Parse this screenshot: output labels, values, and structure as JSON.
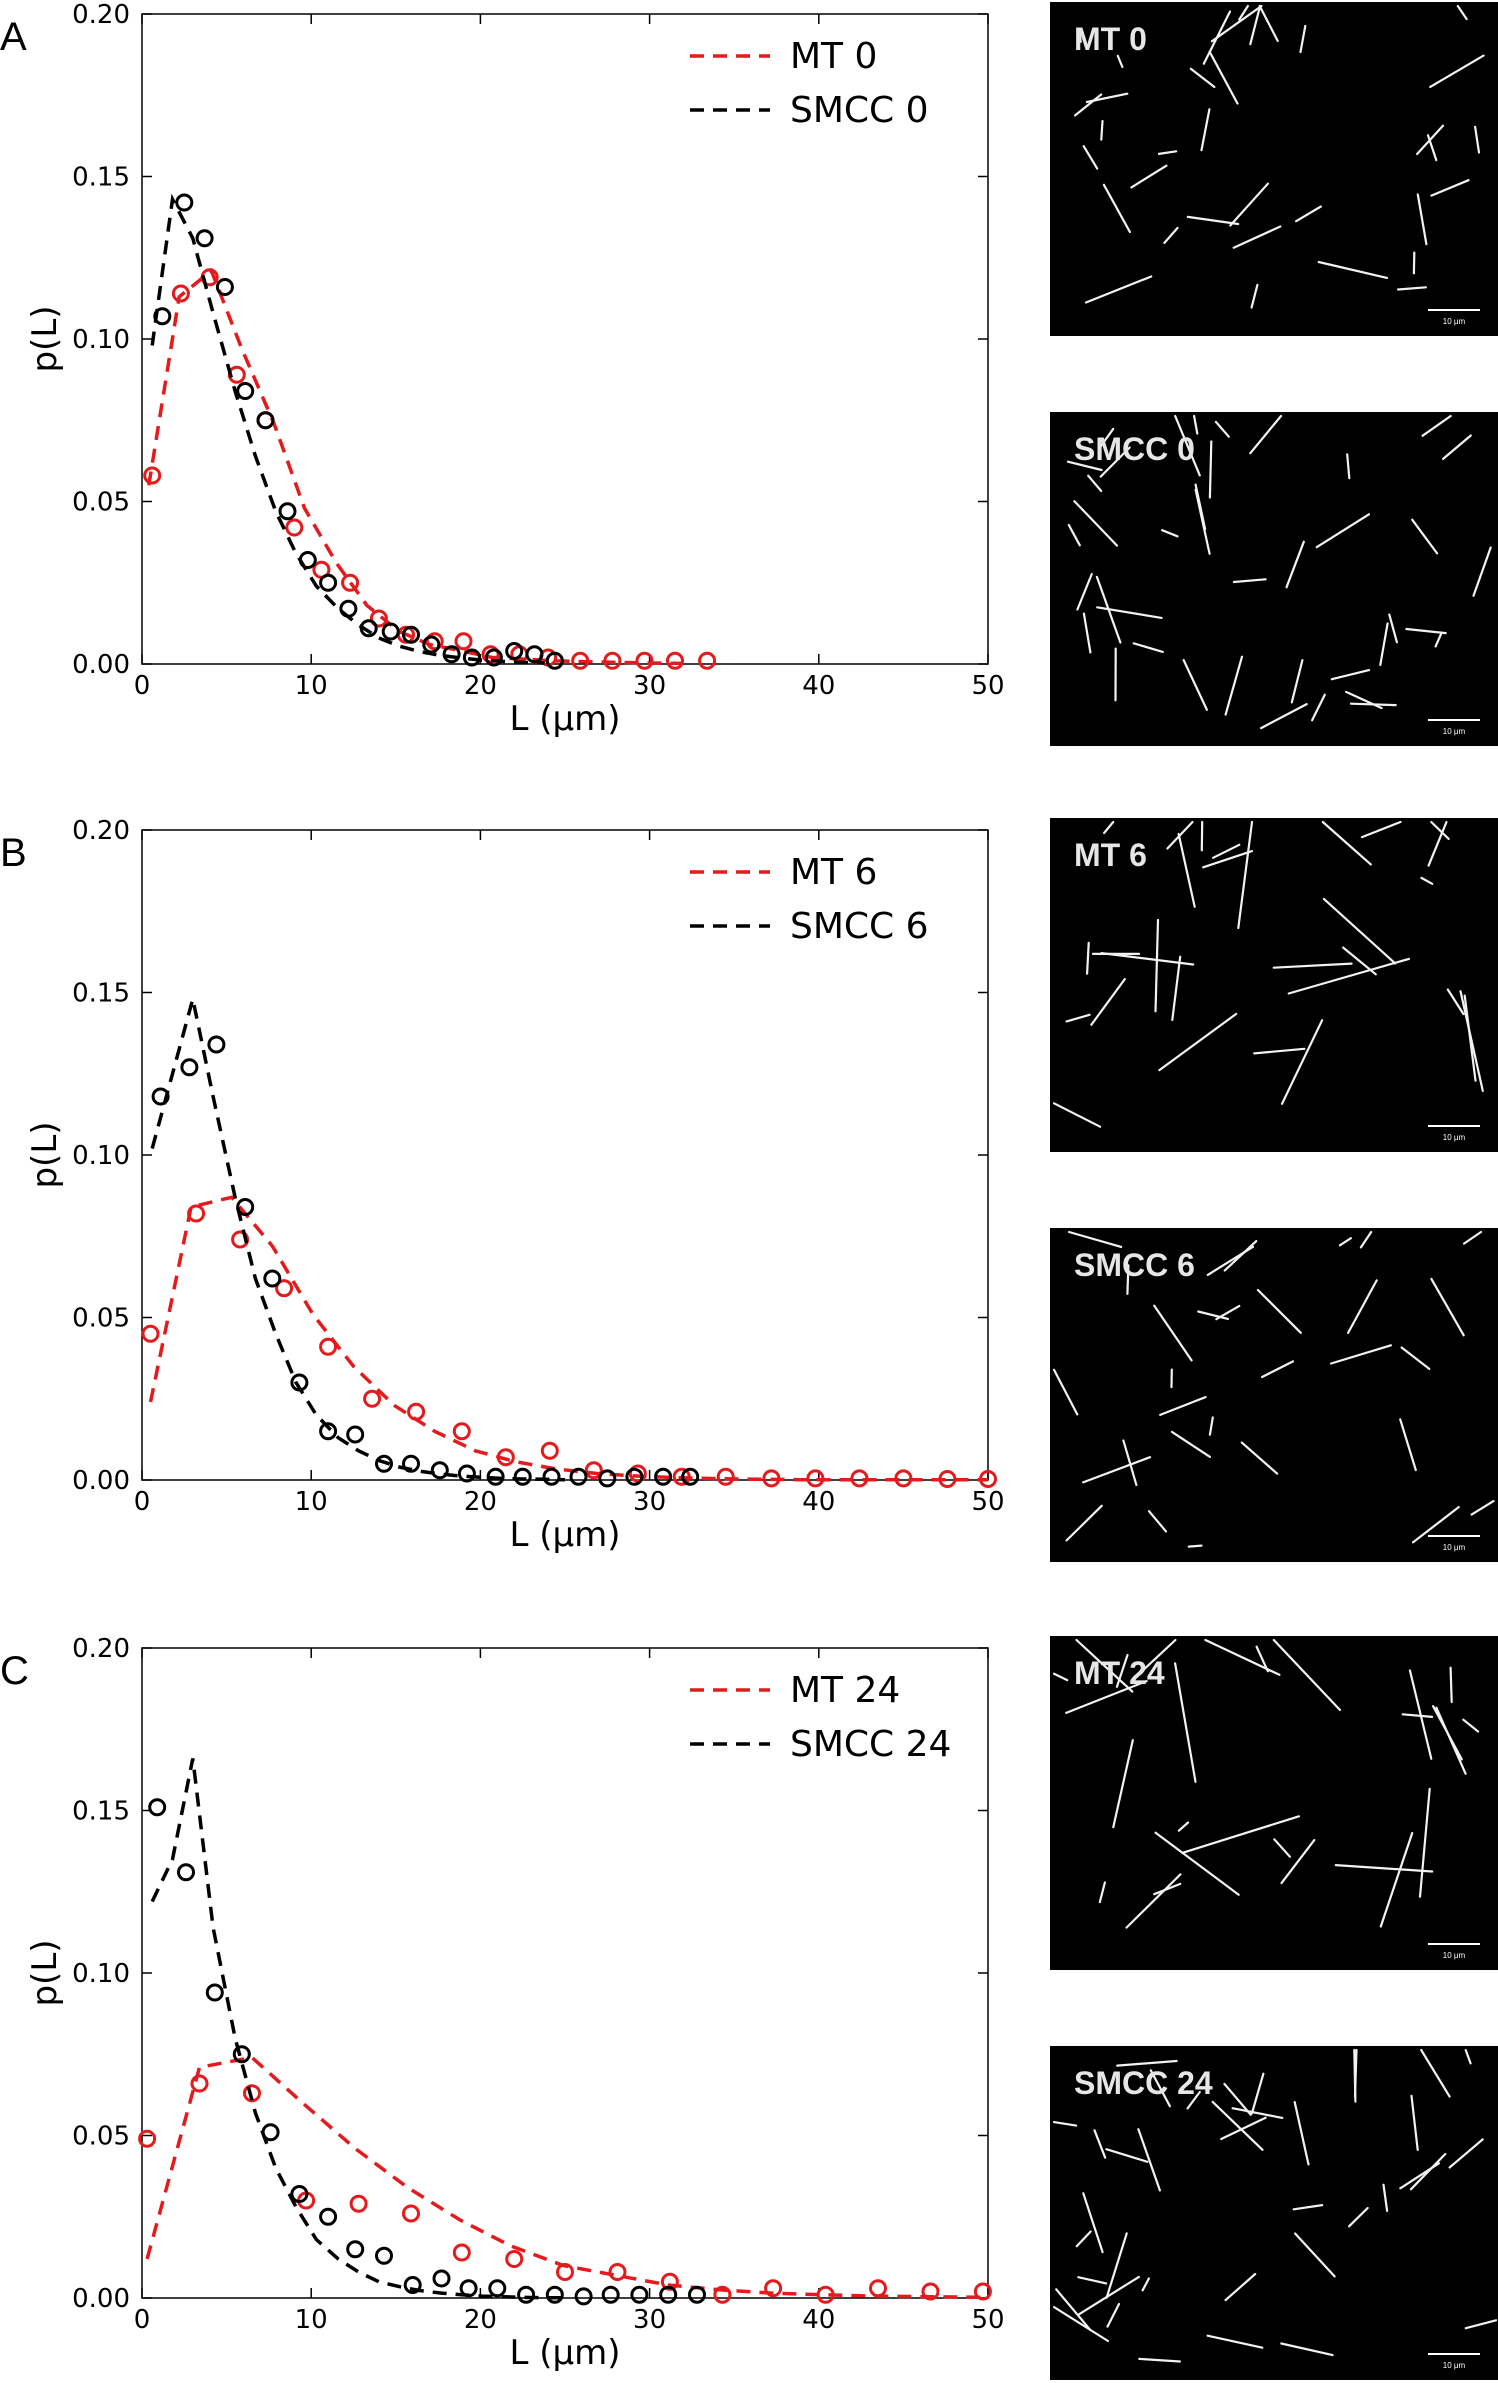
{
  "chart_data": [
    {
      "type": "line",
      "panel": "A",
      "xlabel": "L (μm)",
      "ylabel": "p(L)",
      "xlim": [
        0,
        50
      ],
      "ylim": [
        0,
        0.2
      ],
      "xticks": [
        0,
        10,
        20,
        30,
        40,
        50
      ],
      "yticks": [
        0.0,
        0.05,
        0.1,
        0.15,
        0.2
      ],
      "legend_position": "top-right",
      "series": [
        {
          "name": "MT 0",
          "color": "#e41a1c",
          "points_x": [
            0.6,
            2.3,
            4,
            5.6,
            7.3,
            9,
            10.6,
            12.3,
            14,
            15.6,
            17.3,
            19,
            20.6,
            22.3,
            24,
            25.9,
            27.8,
            29.7,
            31.5,
            33.4
          ],
          "points_y": [
            0.058,
            0.114,
            0.119,
            0.089,
            0.075,
            0.042,
            0.029,
            0.025,
            0.014,
            0.009,
            0.007,
            0.007,
            0.003,
            0.003,
            0.002,
            0.001,
            0.001,
            0.001,
            0.001,
            0.001
          ],
          "fit_x": [
            0.4,
            2.2,
            4.1,
            5.9,
            7.8,
            9.6,
            11.5,
            13.3,
            15.2,
            17.0,
            18.9,
            20.7,
            22.6,
            24.4,
            26.3,
            28.1,
            30.0,
            31.9
          ],
          "fit_y": [
            0.055,
            0.113,
            0.121,
            0.097,
            0.074,
            0.048,
            0.031,
            0.018,
            0.01,
            0.006,
            0.004,
            0.002,
            0.0015,
            0.001,
            0.0007,
            0.0005,
            0.0003,
            0.0002
          ]
        },
        {
          "name": "SMCC 0",
          "color": "#000000",
          "points_x": [
            1.2,
            2.5,
            3.7,
            4.9,
            6.1,
            7.3,
            8.6,
            9.8,
            11,
            12.2,
            13.4,
            14.7,
            15.9,
            17.1,
            18.3,
            19.5,
            20.8,
            22,
            23.2,
            24.4
          ],
          "points_y": [
            0.107,
            0.142,
            0.131,
            0.116,
            0.084,
            0.075,
            0.047,
            0.032,
            0.025,
            0.017,
            0.011,
            0.01,
            0.009,
            0.006,
            0.003,
            0.002,
            0.002,
            0.004,
            0.003,
            0.001
          ],
          "fit_x": [
            0.6,
            1.8,
            3.0,
            4.2,
            5.5,
            6.7,
            7.9,
            9.1,
            10.3,
            11.6,
            12.8,
            14.0,
            15.2,
            16.4,
            17.7,
            18.9,
            20.1,
            21.3,
            22.5,
            23.8
          ],
          "fit_y": [
            0.098,
            0.143,
            0.131,
            0.108,
            0.084,
            0.064,
            0.047,
            0.034,
            0.024,
            0.017,
            0.012,
            0.008,
            0.0055,
            0.0038,
            0.0026,
            0.0018,
            0.0012,
            0.0008,
            0.0005,
            0.0003
          ]
        }
      ]
    },
    {
      "type": "line",
      "panel": "B",
      "xlabel": "L (μm)",
      "ylabel": "p(L)",
      "xlim": [
        0,
        50
      ],
      "ylim": [
        0,
        0.2
      ],
      "xticks": [
        0,
        10,
        20,
        30,
        40,
        50
      ],
      "yticks": [
        0.0,
        0.05,
        0.1,
        0.15,
        0.2
      ],
      "legend_position": "top-right",
      "series": [
        {
          "name": "MT 6",
          "color": "#e41a1c",
          "points_x": [
            0.5,
            3.2,
            5.8,
            8.4,
            11,
            13.6,
            16.2,
            18.9,
            21.5,
            24.1,
            26.7,
            29.3,
            31.9,
            34.5,
            37.2,
            39.8,
            42.4,
            45,
            47.6,
            50
          ],
          "points_y": [
            0.045,
            0.082,
            0.074,
            0.059,
            0.041,
            0.025,
            0.021,
            0.015,
            0.007,
            0.009,
            0.003,
            0.002,
            0.001,
            0.001,
            0.0005,
            0.0005,
            0.0005,
            0.0005,
            0.0003,
            0.0003
          ],
          "fit_x": [
            0.5,
            2.9,
            5.3,
            7.7,
            10.1,
            12.5,
            14.9,
            17.3,
            19.7,
            22.1,
            24.5,
            26.9,
            29.3,
            31.7,
            34.1,
            36.5,
            38.9,
            41.3,
            43.7,
            46.1,
            48.5,
            50
          ],
          "fit_y": [
            0.024,
            0.084,
            0.087,
            0.072,
            0.051,
            0.035,
            0.023,
            0.015,
            0.009,
            0.0056,
            0.0034,
            0.002,
            0.0012,
            0.0007,
            0.0004,
            0.0002,
            0.0001,
            0.0001,
            0.0001,
            0.0001,
            0.0001,
            0.0001
          ]
        },
        {
          "name": "SMCC 6",
          "color": "#000000",
          "points_x": [
            1.1,
            2.8,
            4.4,
            6.1,
            7.7,
            9.3,
            11,
            12.6,
            14.3,
            15.9,
            17.6,
            19.2,
            20.9,
            22.5,
            24.2,
            25.8,
            27.5,
            29.1,
            30.8,
            32.4
          ],
          "points_y": [
            0.118,
            0.127,
            0.134,
            0.084,
            0.062,
            0.03,
            0.015,
            0.014,
            0.005,
            0.005,
            0.003,
            0.002,
            0.001,
            0.001,
            0.001,
            0.001,
            0.0005,
            0.001,
            0.001,
            0.001
          ],
          "fit_x": [
            0.6,
            1.8,
            3.0,
            4.2,
            5.5,
            6.7,
            7.9,
            9.1,
            10.3,
            11.6,
            12.8,
            14.0,
            15.2,
            16.4,
            17.7,
            18.9,
            20.1,
            21.3,
            22.5,
            23.8,
            25.0
          ],
          "fit_y": [
            0.102,
            0.125,
            0.148,
            0.118,
            0.087,
            0.062,
            0.045,
            0.03,
            0.02,
            0.013,
            0.009,
            0.006,
            0.004,
            0.0027,
            0.0018,
            0.0012,
            0.0008,
            0.0005,
            0.0003,
            0.0002,
            0.0001
          ]
        }
      ]
    },
    {
      "type": "line",
      "panel": "C",
      "xlabel": "L (μm)",
      "ylabel": "p(L)",
      "xlim": [
        0,
        50
      ],
      "ylim": [
        0,
        0.2
      ],
      "xticks": [
        0,
        10,
        20,
        30,
        40,
        50
      ],
      "yticks": [
        0.0,
        0.05,
        0.1,
        0.15,
        0.2
      ],
      "legend_position": "top-right",
      "series": [
        {
          "name": "MT 24",
          "color": "#e41a1c",
          "points_x": [
            0.3,
            3.4,
            6.5,
            9.7,
            12.8,
            15.9,
            18.9,
            22,
            25,
            28.1,
            31.2,
            34.3,
            37.3,
            40.4,
            43.5,
            46.6,
            49.7
          ],
          "points_y": [
            0.049,
            0.066,
            0.063,
            0.03,
            0.029,
            0.026,
            0.014,
            0.012,
            0.008,
            0.008,
            0.005,
            0.001,
            0.003,
            0.001,
            0.003,
            0.002,
            0.002
          ],
          "fit_x": [
            0.3,
            3.4,
            6.5,
            9.5,
            12.6,
            15.7,
            18.8,
            21.8,
            24.9,
            28.0,
            31.1,
            34.2,
            37.2,
            40.3,
            43.4,
            46.5,
            49.6
          ],
          "fit_y": [
            0.012,
            0.071,
            0.074,
            0.06,
            0.046,
            0.034,
            0.024,
            0.016,
            0.01,
            0.007,
            0.004,
            0.0025,
            0.0015,
            0.001,
            0.0006,
            0.0004,
            0.0002
          ]
        },
        {
          "name": "SMCC 24",
          "color": "#000000",
          "points_x": [
            0.9,
            2.6,
            4.3,
            5.9,
            7.6,
            9.3,
            11,
            12.6,
            14.3,
            16,
            17.7,
            19.3,
            21,
            22.7,
            24.4,
            26.1,
            27.7,
            29.4,
            31.1,
            32.8
          ],
          "points_y": [
            0.151,
            0.131,
            0.094,
            0.075,
            0.051,
            0.032,
            0.025,
            0.015,
            0.013,
            0.004,
            0.006,
            0.003,
            0.003,
            0.001,
            0.001,
            0.0005,
            0.001,
            0.001,
            0.001,
            0.001
          ],
          "fit_x": [
            0.6,
            1.8,
            3.0,
            4.2,
            5.5,
            6.7,
            7.9,
            9.1,
            10.3,
            11.6,
            12.8,
            14.0,
            15.2,
            16.4,
            17.7,
            18.9,
            20.1,
            21.3,
            22.5,
            23.8,
            25.0
          ],
          "fit_y": [
            0.122,
            0.135,
            0.166,
            0.114,
            0.08,
            0.057,
            0.04,
            0.028,
            0.018,
            0.012,
            0.008,
            0.005,
            0.0035,
            0.0023,
            0.0015,
            0.001,
            0.0006,
            0.0004,
            0.0002,
            0.0001,
            0.0001
          ]
        }
      ]
    }
  ],
  "panels": [
    {
      "letter": "A",
      "micrographs": [
        {
          "label": "MT 0",
          "scale": "10 μm"
        },
        {
          "label": "SMCC 0",
          "scale": "10 μm"
        }
      ]
    },
    {
      "letter": "B",
      "micrographs": [
        {
          "label": "MT 6",
          "scale": "10 μm"
        },
        {
          "label": "SMCC 6",
          "scale": "10 μm"
        }
      ]
    },
    {
      "letter": "C",
      "micrographs": [
        {
          "label": "MT 24",
          "scale": "10 μm"
        },
        {
          "label": "SMCC 24",
          "scale": "10 μm"
        }
      ]
    }
  ],
  "colors": {
    "mt": "#e41a1c",
    "smcc": "#000000",
    "micrograph_bg": "#000000",
    "filament": "#f2f2f2"
  }
}
